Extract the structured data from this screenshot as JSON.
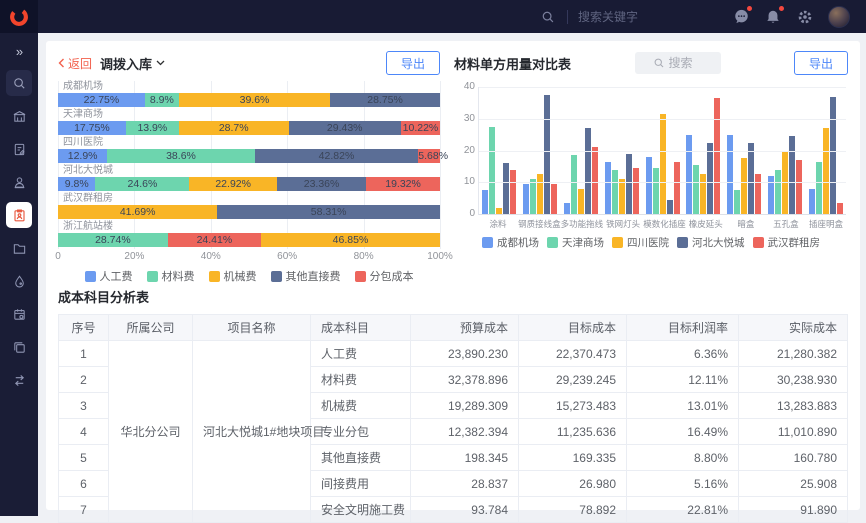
{
  "app": {
    "header": {
      "search_placeholder": "搜索关键字",
      "brand_color": "#F2452C"
    },
    "sidebar": {
      "expand_glyph": "»",
      "active_item": "cost-clipboard"
    }
  },
  "left_panel": {
    "back_label": "返回",
    "title": "调拨入库",
    "export_label": "导出",
    "chart_data": {
      "type": "bar",
      "variant": "horizontal-stacked-percent",
      "x_ticks": [
        "0",
        "20%",
        "40%",
        "60%",
        "80%",
        "100%"
      ],
      "legend": [
        "人工费",
        "材料费",
        "机械费",
        "其他直接费",
        "分包成本"
      ],
      "series_colors": {
        "人工费": "#6C9BF0",
        "材料费": "#6DD5AE",
        "机械费": "#F9B526",
        "其他直接费": "#5B6E96",
        "分包成本": "#ED655C"
      },
      "categories": [
        {
          "name": "成都机场",
          "segments": [
            {
              "series": "人工费",
              "label": "22.75%",
              "value": 22.75
            },
            {
              "series": "材料费",
              "label": "8.9%",
              "value": 8.9
            },
            {
              "series": "机械费",
              "label": "39.6%",
              "value": 39.6
            },
            {
              "series": "其他直接费",
              "label": "28.75%",
              "value": 28.75
            }
          ]
        },
        {
          "name": "天津商场",
          "segments": [
            {
              "series": "人工费",
              "label": "17.75%",
              "value": 17.75
            },
            {
              "series": "材料费",
              "label": "13.9%",
              "value": 13.9
            },
            {
              "series": "机械费",
              "label": "28.7%",
              "value": 28.7
            },
            {
              "series": "其他直接费",
              "label": "29.43%",
              "value": 29.43
            },
            {
              "series": "分包成本",
              "label": "10.22%",
              "value": 10.22
            }
          ]
        },
        {
          "name": "四川医院",
          "segments": [
            {
              "series": "人工费",
              "label": "12.9%",
              "value": 12.9
            },
            {
              "series": "材料费",
              "label": "38.6%",
              "value": 38.6
            },
            {
              "series": "其他直接费",
              "label": "42.82%",
              "value": 42.82
            },
            {
              "series": "分包成本",
              "label": "5.68%",
              "value": 5.68
            }
          ]
        },
        {
          "name": "河北大悦城",
          "segments": [
            {
              "series": "人工费",
              "label": "9.8%",
              "value": 9.8
            },
            {
              "series": "材料费",
              "label": "24.6%",
              "value": 24.6
            },
            {
              "series": "机械费",
              "label": "22.92%",
              "value": 22.92
            },
            {
              "series": "其他直接费",
              "label": "23.36%",
              "value": 23.36
            },
            {
              "series": "分包成本",
              "label": "19.32%",
              "value": 19.32
            }
          ]
        },
        {
          "name": "武汉群租房",
          "segments": [
            {
              "series": "机械费",
              "label": "41.69%",
              "value": 41.69
            },
            {
              "series": "其他直接费",
              "label": "58.31%",
              "value": 58.31
            }
          ]
        },
        {
          "name": "浙江航站楼",
          "segments": [
            {
              "series": "材料费",
              "label": "28.74%",
              "value": 28.74
            },
            {
              "series": "分包成本",
              "label": "24.41%",
              "value": 24.41
            },
            {
              "series": "机械费",
              "label": "46.85%",
              "value": 46.85
            }
          ]
        }
      ]
    }
  },
  "right_panel": {
    "title": "材料单方用量对比表",
    "search_placeholder": "搜索",
    "export_label": "导出",
    "chart_data": {
      "type": "bar",
      "variant": "vertical-grouped",
      "ylim": [
        0,
        40
      ],
      "y_ticks": [
        0,
        10,
        20,
        30,
        40
      ],
      "categories": [
        "涂料",
        "钢质接线盒",
        "多功能拖线",
        "铁网灯头",
        "模数化插座",
        "橡皮延头",
        "暗盒",
        "五孔盒",
        "插座明盒"
      ],
      "legend": [
        "成都机场",
        "天津商场",
        "四川医院",
        "河北大悦城",
        "武汉群租房"
      ],
      "series": [
        {
          "name": "成都机场",
          "color": "#6C9BF0",
          "values": [
            7.5,
            9.5,
            3.5,
            16.5,
            18,
            25,
            25,
            12,
            8
          ]
        },
        {
          "name": "天津商场",
          "color": "#6DD5AE",
          "values": [
            27.5,
            11,
            18.5,
            14,
            14.5,
            15.5,
            7.5,
            14,
            16.5
          ]
        },
        {
          "name": "四川医院",
          "color": "#F9B526",
          "values": [
            2,
            12.5,
            8,
            11,
            31.5,
            12.5,
            17.5,
            20,
            27
          ]
        },
        {
          "name": "河北大悦城",
          "color": "#5B6E96",
          "values": [
            16,
            37.5,
            27,
            19,
            4.5,
            22.5,
            22.5,
            24.5,
            37
          ]
        },
        {
          "name": "武汉群租房",
          "color": "#ED655C",
          "values": [
            14,
            9.5,
            21,
            14.5,
            16.5,
            36.5,
            12.5,
            17,
            3.5
          ]
        }
      ]
    }
  },
  "cost_table": {
    "title": "成本科目分析表",
    "columns": [
      "序号",
      "所属公司",
      "项目名称",
      "成本科目",
      "预算成本",
      "目标成本",
      "目标利润率",
      "实际成本"
    ],
    "column_align": [
      "c",
      "c",
      "c",
      "l",
      "r",
      "r",
      "r",
      "r"
    ],
    "company": "华北分公司",
    "project": "河北大悦城1#地块项目",
    "rows": [
      {
        "no": "1",
        "subject": "人工费",
        "budget": "23,890.230",
        "target": "22,370.473",
        "margin": "6.36%",
        "actual": "21,280.382"
      },
      {
        "no": "2",
        "subject": "材料费",
        "budget": "32,378.896",
        "target": "29,239.245",
        "margin": "12.11%",
        "actual": "30,238.930"
      },
      {
        "no": "3",
        "subject": "机械费",
        "budget": "19,289.309",
        "target": "15,273.483",
        "margin": "13.01%",
        "actual": "13,283.883"
      },
      {
        "no": "4",
        "subject": "专业分包",
        "budget": "12,382.394",
        "target": "11,235.636",
        "margin": "16.49%",
        "actual": "11,010.890"
      },
      {
        "no": "5",
        "subject": "其他直接费",
        "budget": "198.345",
        "target": "169.335",
        "margin": "8.80%",
        "actual": "160.780"
      },
      {
        "no": "6",
        "subject": "间接费用",
        "budget": "28.837",
        "target": "26.980",
        "margin": "5.16%",
        "actual": "25.908"
      },
      {
        "no": "7",
        "subject": "安全文明施工费",
        "budget": "93.784",
        "target": "78.892",
        "margin": "22.81%",
        "actual": "91.890"
      }
    ]
  }
}
